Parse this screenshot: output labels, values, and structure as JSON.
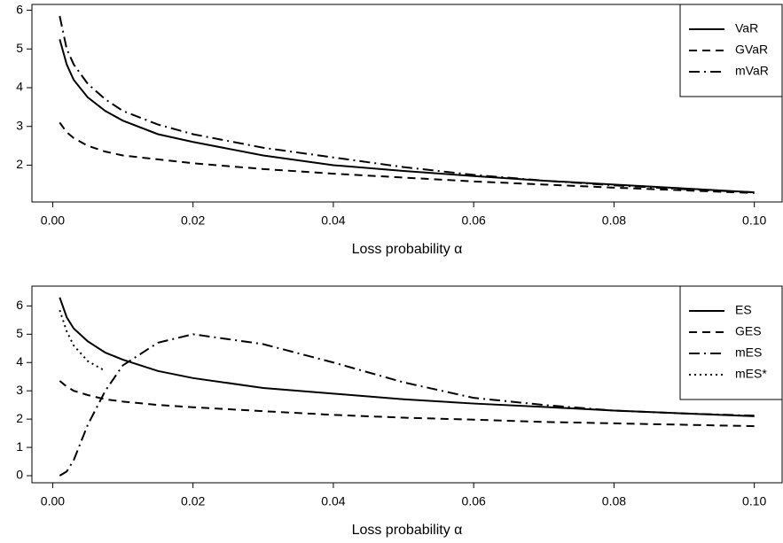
{
  "chart_data": [
    {
      "type": "line",
      "x_label": "Loss probability α",
      "x": [
        0.001,
        0.002,
        0.003,
        0.005,
        0.0075,
        0.01,
        0.015,
        0.02,
        0.03,
        0.04,
        0.05,
        0.06,
        0.07,
        0.08,
        0.09,
        0.1
      ],
      "series": [
        {
          "name": "VaR",
          "color": "#000000",
          "linestyle": "solid",
          "values": [
            5.25,
            4.6,
            4.2,
            3.75,
            3.4,
            3.15,
            2.8,
            2.6,
            2.25,
            2.0,
            1.85,
            1.72,
            1.6,
            1.5,
            1.4,
            1.3
          ]
        },
        {
          "name": "GVaR",
          "color": "#000000",
          "linestyle": "dashed",
          "values": [
            3.1,
            2.85,
            2.7,
            2.5,
            2.35,
            2.25,
            2.15,
            2.05,
            1.9,
            1.78,
            1.68,
            1.58,
            1.5,
            1.42,
            1.35,
            1.28
          ]
        },
        {
          "name": "mVaR",
          "color": "#000000",
          "linestyle": "dashdot",
          "values": [
            5.85,
            5.0,
            4.6,
            4.1,
            3.7,
            3.4,
            3.05,
            2.8,
            2.45,
            2.2,
            1.95,
            1.75,
            1.6,
            1.48,
            1.38,
            1.3
          ]
        }
      ],
      "xlim": [
        -0.00296,
        0.10396
      ],
      "xticks": [
        {
          "value": 0,
          "label": "0.00"
        },
        {
          "value": 0.02,
          "label": "0.02"
        },
        {
          "value": 0.04,
          "label": "0.04"
        },
        {
          "value": 0.06,
          "label": "0.06"
        },
        {
          "value": 0.08,
          "label": "0.08"
        },
        {
          "value": 0.1,
          "label": "0.10"
        }
      ],
      "ylim": [
        1.05,
        6.15
      ],
      "yticks": [
        2,
        3,
        4,
        5,
        6
      ],
      "legend": "topright",
      "grid": false
    },
    {
      "type": "line",
      "x_label": "Loss probability α",
      "x": [
        0.001,
        0.002,
        0.003,
        0.005,
        0.0075,
        0.01,
        0.015,
        0.02,
        0.03,
        0.04,
        0.05,
        0.06,
        0.07,
        0.08,
        0.09,
        0.1
      ],
      "series": [
        {
          "name": "ES",
          "color": "#000000",
          "linestyle": "solid",
          "values": [
            6.3,
            5.6,
            5.2,
            4.75,
            4.35,
            4.1,
            3.7,
            3.45,
            3.1,
            2.9,
            2.7,
            2.55,
            2.43,
            2.3,
            2.2,
            2.1
          ]
        },
        {
          "name": "GES",
          "color": "#000000",
          "linestyle": "dashed",
          "values": [
            3.35,
            3.15,
            3.0,
            2.85,
            2.7,
            2.62,
            2.5,
            2.42,
            2.28,
            2.15,
            2.05,
            1.98,
            1.9,
            1.85,
            1.8,
            1.75
          ]
        },
        {
          "name": "mES",
          "color": "#000000",
          "linestyle": "dashdot",
          "values": [
            0.0,
            0.15,
            0.55,
            1.8,
            3.0,
            3.9,
            4.7,
            5.0,
            4.65,
            4.0,
            3.3,
            2.75,
            2.5,
            2.3,
            2.2,
            2.12
          ]
        },
        {
          "name": "mES*",
          "color": "#000000",
          "linestyle": "dotted",
          "values": [
            5.85,
            5.1,
            4.6,
            4.05,
            3.7,
            null,
            null,
            null,
            null,
            null,
            null,
            null,
            null,
            null,
            null,
            null
          ]
        }
      ],
      "xlim": [
        -0.00296,
        0.10396
      ],
      "xticks": [
        {
          "value": 0,
          "label": "0.00"
        },
        {
          "value": 0.02,
          "label": "0.02"
        },
        {
          "value": 0.04,
          "label": "0.04"
        },
        {
          "value": 0.06,
          "label": "0.06"
        },
        {
          "value": 0.08,
          "label": "0.08"
        },
        {
          "value": 0.1,
          "label": "0.10"
        }
      ],
      "ylim": [
        -0.25,
        6.7
      ],
      "yticks": [
        0,
        1,
        2,
        3,
        4,
        5,
        6
      ],
      "legend": "topright",
      "grid": false
    }
  ]
}
